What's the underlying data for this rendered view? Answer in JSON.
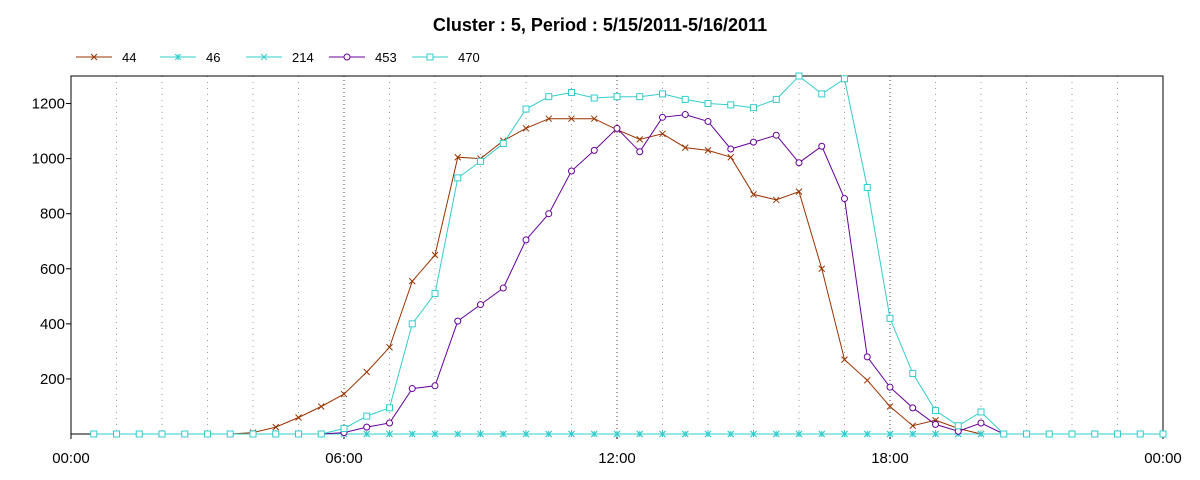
{
  "chart_data": {
    "type": "line",
    "title": "Cluster : 5, Period : 5/15/2011-5/16/2011",
    "xlabel": "",
    "ylabel": "",
    "x_unit": "hours",
    "xlim": [
      0,
      24
    ],
    "ylim": [
      0,
      1300
    ],
    "x_ticks": [
      0,
      6,
      12,
      18,
      24
    ],
    "x_tick_labels": [
      "00:00",
      "06:00",
      "12:00",
      "18:00",
      "00:00"
    ],
    "y_ticks": [
      200,
      400,
      600,
      800,
      1000,
      1200
    ],
    "y_tick_labels": [
      "200",
      "400",
      "600",
      "800",
      "1000",
      "1200"
    ],
    "grid": true,
    "legend_position": "top-left",
    "series": [
      {
        "name": "44",
        "color": "#993300",
        "marker": "x",
        "points": [
          [
            0.5,
            0
          ],
          [
            1,
            0
          ],
          [
            1.5,
            0
          ],
          [
            2,
            0
          ],
          [
            2.5,
            0
          ],
          [
            3,
            0
          ],
          [
            3.5,
            0
          ],
          [
            4,
            5
          ],
          [
            4.5,
            25
          ],
          [
            5,
            60
          ],
          [
            5.5,
            100
          ],
          [
            6,
            145
          ],
          [
            6.5,
            225
          ],
          [
            7,
            315
          ],
          [
            7.5,
            555
          ],
          [
            8,
            650
          ],
          [
            8.5,
            1005
          ],
          [
            9,
            1000
          ],
          [
            9.5,
            1065
          ],
          [
            10,
            1110
          ],
          [
            10.5,
            1145
          ],
          [
            11,
            1145
          ],
          [
            11.5,
            1145
          ],
          [
            12,
            1105
          ],
          [
            12.5,
            1070
          ],
          [
            13,
            1090
          ],
          [
            13.5,
            1040
          ],
          [
            14,
            1030
          ],
          [
            14.5,
            1005
          ],
          [
            15,
            870
          ],
          [
            15.5,
            850
          ],
          [
            16,
            880
          ],
          [
            16.5,
            600
          ],
          [
            17,
            270
          ],
          [
            17.5,
            195
          ],
          [
            18,
            100
          ],
          [
            18.5,
            30
          ],
          [
            19,
            50
          ],
          [
            19.5,
            20
          ],
          [
            20,
            0
          ],
          [
            20.5,
            0
          ],
          [
            21,
            0
          ],
          [
            21.5,
            0
          ],
          [
            22,
            0
          ],
          [
            22.5,
            0
          ],
          [
            23,
            0
          ],
          [
            23.5,
            0
          ],
          [
            24,
            0
          ]
        ]
      },
      {
        "name": "46",
        "color": "#33cccc",
        "marker": "star",
        "points": [
          [
            0.5,
            0
          ],
          [
            1,
            0
          ],
          [
            1.5,
            0
          ],
          [
            2,
            0
          ],
          [
            2.5,
            0
          ],
          [
            3,
            0
          ],
          [
            3.5,
            0
          ],
          [
            4,
            0
          ],
          [
            4.5,
            0
          ],
          [
            5,
            0
          ],
          [
            5.5,
            0
          ],
          [
            6,
            0
          ],
          [
            6.5,
            0
          ],
          [
            7,
            0
          ],
          [
            7.5,
            0
          ],
          [
            8,
            0
          ],
          [
            8.5,
            0
          ],
          [
            9,
            0
          ],
          [
            9.5,
            0
          ],
          [
            10,
            0
          ],
          [
            10.5,
            0
          ],
          [
            11,
            0
          ],
          [
            11.5,
            0
          ],
          [
            12,
            0
          ],
          [
            12.5,
            0
          ],
          [
            13,
            0
          ],
          [
            13.5,
            0
          ],
          [
            14,
            0
          ],
          [
            14.5,
            0
          ],
          [
            15,
            0
          ],
          [
            15.5,
            0
          ],
          [
            16,
            0
          ],
          [
            16.5,
            0
          ],
          [
            17,
            0
          ],
          [
            17.5,
            0
          ],
          [
            18,
            0
          ],
          [
            18.5,
            0
          ],
          [
            19,
            0
          ],
          [
            19.5,
            0
          ],
          [
            20,
            0
          ],
          [
            20.5,
            0
          ],
          [
            21,
            0
          ],
          [
            21.5,
            0
          ],
          [
            22,
            0
          ],
          [
            22.5,
            0
          ],
          [
            23,
            0
          ],
          [
            23.5,
            0
          ],
          [
            24,
            0
          ]
        ]
      },
      {
        "name": "214",
        "color": "#33cccc",
        "marker": "x",
        "points": [
          [
            0.5,
            0
          ],
          [
            1,
            0
          ],
          [
            1.5,
            0
          ],
          [
            2,
            0
          ],
          [
            2.5,
            0
          ],
          [
            3,
            0
          ],
          [
            3.5,
            0
          ],
          [
            4,
            0
          ],
          [
            4.5,
            0
          ],
          [
            5,
            0
          ],
          [
            5.5,
            0
          ],
          [
            6,
            0
          ],
          [
            6.5,
            0
          ],
          [
            7,
            0
          ],
          [
            7.5,
            0
          ],
          [
            8,
            0
          ],
          [
            8.5,
            0
          ],
          [
            9,
            0
          ],
          [
            9.5,
            0
          ],
          [
            10,
            0
          ],
          [
            10.5,
            0
          ],
          [
            11,
            0
          ],
          [
            11.5,
            0
          ],
          [
            12,
            0
          ],
          [
            12.5,
            0
          ],
          [
            13,
            0
          ],
          [
            13.5,
            0
          ],
          [
            14,
            0
          ],
          [
            14.5,
            0
          ],
          [
            15,
            0
          ],
          [
            15.5,
            0
          ],
          [
            16,
            0
          ],
          [
            16.5,
            0
          ],
          [
            17,
            0
          ],
          [
            17.5,
            0
          ],
          [
            18,
            0
          ],
          [
            18.5,
            0
          ],
          [
            19,
            0
          ],
          [
            19.5,
            0
          ],
          [
            20,
            0
          ],
          [
            20.5,
            0
          ],
          [
            21,
            0
          ],
          [
            21.5,
            0
          ],
          [
            22,
            0
          ],
          [
            22.5,
            0
          ],
          [
            23,
            0
          ],
          [
            23.5,
            0
          ],
          [
            24,
            0
          ]
        ]
      },
      {
        "name": "453",
        "color": "#660099",
        "marker": "circle",
        "points": [
          [
            0.5,
            0
          ],
          [
            1,
            0
          ],
          [
            1.5,
            0
          ],
          [
            2,
            0
          ],
          [
            2.5,
            0
          ],
          [
            3,
            0
          ],
          [
            3.5,
            0
          ],
          [
            4,
            0
          ],
          [
            4.5,
            0
          ],
          [
            5,
            0
          ],
          [
            5.5,
            0
          ],
          [
            6,
            5
          ],
          [
            6.5,
            25
          ],
          [
            7,
            40
          ],
          [
            7.5,
            165
          ],
          [
            8,
            175
          ],
          [
            8.5,
            410
          ],
          [
            9,
            470
          ],
          [
            9.5,
            530
          ],
          [
            10,
            705
          ],
          [
            10.5,
            800
          ],
          [
            11,
            955
          ],
          [
            11.5,
            1030
          ],
          [
            12,
            1110
          ],
          [
            12.5,
            1025
          ],
          [
            13,
            1150
          ],
          [
            13.5,
            1160
          ],
          [
            14,
            1135
          ],
          [
            14.5,
            1035
          ],
          [
            15,
            1060
          ],
          [
            15.5,
            1085
          ],
          [
            16,
            985
          ],
          [
            16.5,
            1045
          ],
          [
            17,
            855
          ],
          [
            17.5,
            280
          ],
          [
            18,
            170
          ],
          [
            18.5,
            95
          ],
          [
            19,
            35
          ],
          [
            19.5,
            10
          ],
          [
            20,
            40
          ],
          [
            20.5,
            0
          ],
          [
            21,
            0
          ],
          [
            21.5,
            0
          ],
          [
            22,
            0
          ],
          [
            22.5,
            0
          ],
          [
            23,
            0
          ],
          [
            23.5,
            0
          ],
          [
            24,
            0
          ]
        ]
      },
      {
        "name": "470",
        "color": "#33cccc",
        "marker": "square",
        "points": [
          [
            0.5,
            0
          ],
          [
            1,
            0
          ],
          [
            1.5,
            0
          ],
          [
            2,
            0
          ],
          [
            2.5,
            0
          ],
          [
            3,
            0
          ],
          [
            3.5,
            0
          ],
          [
            4,
            0
          ],
          [
            4.5,
            0
          ],
          [
            5,
            0
          ],
          [
            5.5,
            0
          ],
          [
            6,
            20
          ],
          [
            6.5,
            65
          ],
          [
            7,
            95
          ],
          [
            7.5,
            400
          ],
          [
            8,
            510
          ],
          [
            8.5,
            930
          ],
          [
            9,
            990
          ],
          [
            9.5,
            1055
          ],
          [
            10,
            1180
          ],
          [
            10.5,
            1225
          ],
          [
            11,
            1240
          ],
          [
            11.5,
            1220
          ],
          [
            12,
            1225
          ],
          [
            12.5,
            1225
          ],
          [
            13,
            1235
          ],
          [
            13.5,
            1215
          ],
          [
            14,
            1200
          ],
          [
            14.5,
            1195
          ],
          [
            15,
            1185
          ],
          [
            15.5,
            1215
          ],
          [
            16,
            1300
          ],
          [
            16.5,
            1235
          ],
          [
            17,
            1290
          ],
          [
            17.5,
            895
          ],
          [
            18,
            420
          ],
          [
            18.5,
            220
          ],
          [
            19,
            85
          ],
          [
            19.5,
            30
          ],
          [
            20,
            80
          ],
          [
            20.5,
            0
          ],
          [
            21,
            0
          ],
          [
            21.5,
            0
          ],
          [
            22,
            0
          ],
          [
            22.5,
            0
          ],
          [
            23,
            0
          ],
          [
            23.5,
            0
          ],
          [
            24,
            0
          ]
        ]
      }
    ]
  }
}
